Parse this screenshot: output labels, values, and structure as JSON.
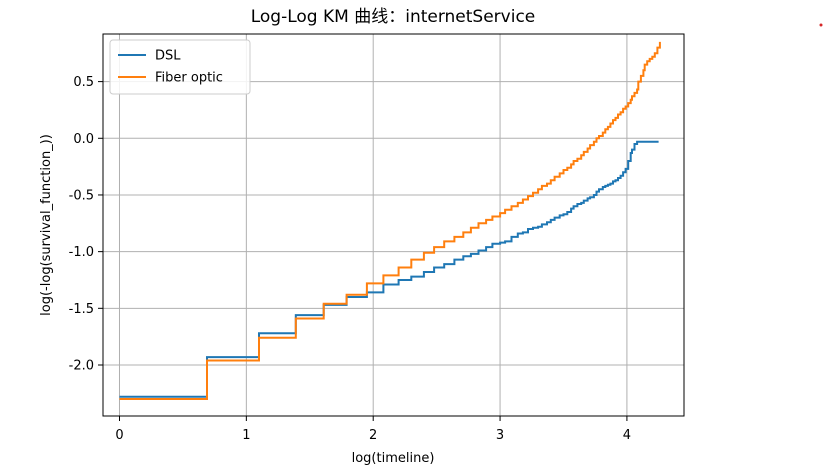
{
  "chart_data": {
    "type": "line",
    "step": true,
    "title": "Log-Log KM 曲线：internetService",
    "xlabel": "log(timeline)",
    "ylabel": "log(-log(survival_function_))",
    "xlim": [
      -0.13,
      4.45
    ],
    "ylim": [
      -2.45,
      0.92
    ],
    "xticks": [
      0,
      1,
      2,
      3,
      4
    ],
    "xtick_labels": [
      "0",
      "1",
      "2",
      "3",
      "4"
    ],
    "yticks": [
      0.5,
      0.0,
      -0.5,
      -1.0,
      -1.5,
      -2.0
    ],
    "ytick_labels": [
      "0.5",
      "0.0",
      "-0.5",
      "-1.0",
      "-1.5",
      "-2.0"
    ],
    "grid": true,
    "legend_position": "top-left",
    "series": [
      {
        "name": "DSL",
        "color": "#1f77b4",
        "x": [
          0.0,
          0.69,
          1.1,
          1.39,
          1.61,
          1.79,
          1.95,
          2.08,
          2.2,
          2.3,
          2.4,
          2.48,
          2.56,
          2.64,
          2.71,
          2.77,
          2.83,
          2.89,
          2.94,
          3.0,
          3.04,
          3.09,
          3.14,
          3.18,
          3.22,
          3.26,
          3.3,
          3.33,
          3.37,
          3.4,
          3.43,
          3.47,
          3.5,
          3.53,
          3.56,
          3.58,
          3.61,
          3.64,
          3.66,
          3.69,
          3.71,
          3.74,
          3.76,
          3.78,
          3.81,
          3.83,
          3.85,
          3.87,
          3.89,
          3.91,
          3.93,
          3.95,
          3.97,
          3.99,
          4.01,
          4.03,
          4.04,
          4.06,
          4.08,
          4.09,
          4.11,
          4.13,
          4.14,
          4.16,
          4.25
        ],
        "y": [
          -2.28,
          -1.93,
          -1.72,
          -1.56,
          -1.47,
          -1.4,
          -1.36,
          -1.29,
          -1.25,
          -1.22,
          -1.18,
          -1.14,
          -1.11,
          -1.07,
          -1.04,
          -1.02,
          -0.99,
          -0.96,
          -0.93,
          -0.92,
          -0.91,
          -0.87,
          -0.84,
          -0.83,
          -0.8,
          -0.79,
          -0.78,
          -0.76,
          -0.74,
          -0.72,
          -0.7,
          -0.68,
          -0.67,
          -0.65,
          -0.62,
          -0.6,
          -0.58,
          -0.57,
          -0.55,
          -0.53,
          -0.52,
          -0.5,
          -0.47,
          -0.45,
          -0.43,
          -0.42,
          -0.41,
          -0.4,
          -0.38,
          -0.37,
          -0.35,
          -0.33,
          -0.3,
          -0.27,
          -0.2,
          -0.13,
          -0.1,
          -0.05,
          -0.03,
          -0.03,
          -0.03,
          -0.03,
          -0.03,
          -0.03,
          -0.03
        ]
      },
      {
        "name": "Fiber optic",
        "color": "#ff7f0e",
        "x": [
          0.0,
          0.69,
          1.1,
          1.39,
          1.61,
          1.79,
          1.95,
          2.08,
          2.2,
          2.3,
          2.4,
          2.48,
          2.56,
          2.64,
          2.71,
          2.77,
          2.83,
          2.89,
          2.94,
          3.0,
          3.04,
          3.09,
          3.14,
          3.18,
          3.22,
          3.26,
          3.3,
          3.33,
          3.37,
          3.4,
          3.43,
          3.47,
          3.5,
          3.53,
          3.56,
          3.58,
          3.61,
          3.64,
          3.66,
          3.69,
          3.71,
          3.74,
          3.76,
          3.78,
          3.81,
          3.83,
          3.85,
          3.87,
          3.89,
          3.91,
          3.93,
          3.95,
          3.97,
          3.99,
          4.01,
          4.03,
          4.04,
          4.06,
          4.08,
          4.09,
          4.11,
          4.13,
          4.14,
          4.16,
          4.18,
          4.2,
          4.22,
          4.24,
          4.26
        ],
        "y": [
          -2.3,
          -1.96,
          -1.76,
          -1.59,
          -1.46,
          -1.38,
          -1.28,
          -1.21,
          -1.14,
          -1.07,
          -1.01,
          -0.96,
          -0.91,
          -0.87,
          -0.83,
          -0.79,
          -0.75,
          -0.72,
          -0.69,
          -0.66,
          -0.63,
          -0.6,
          -0.57,
          -0.54,
          -0.51,
          -0.48,
          -0.45,
          -0.42,
          -0.4,
          -0.37,
          -0.34,
          -0.31,
          -0.28,
          -0.26,
          -0.23,
          -0.2,
          -0.18,
          -0.15,
          -0.12,
          -0.09,
          -0.06,
          -0.03,
          0.0,
          0.02,
          0.05,
          0.08,
          0.1,
          0.13,
          0.16,
          0.18,
          0.21,
          0.23,
          0.26,
          0.28,
          0.31,
          0.34,
          0.37,
          0.4,
          0.43,
          0.5,
          0.55,
          0.6,
          0.65,
          0.68,
          0.7,
          0.72,
          0.75,
          0.8,
          0.85
        ]
      }
    ]
  }
}
